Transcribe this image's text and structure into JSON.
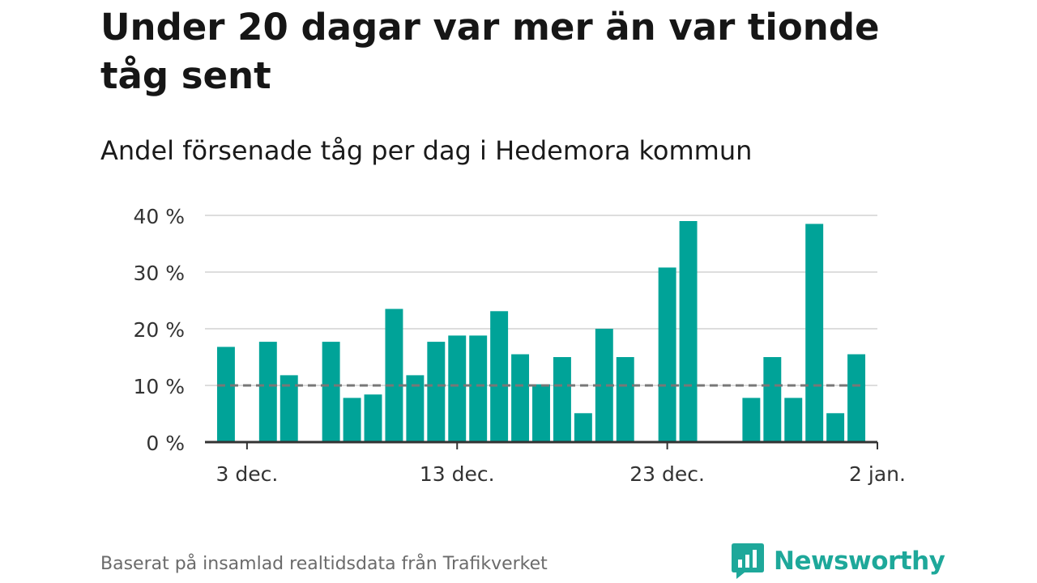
{
  "title": "Under 20 dagar var mer än var tionde tåg sent",
  "subtitle": "Andel försenade tåg per dag i Hedemora kommun",
  "source": "Baserat på insamlad realtidsdata från Trafikverket",
  "brand": {
    "name": "Newsworthy",
    "icon": "newsworthy-logo-icon",
    "color": "#1ea89a"
  },
  "colors": {
    "bar": "#00a398",
    "reference": "#777777",
    "grid": "#dddddd",
    "axis": "#333333"
  },
  "chart_data": {
    "type": "bar",
    "x": [
      "2019-12-02",
      "2019-12-03",
      "2019-12-04",
      "2019-12-05",
      "2019-12-06",
      "2019-12-07",
      "2019-12-08",
      "2019-12-09",
      "2019-12-10",
      "2019-12-11",
      "2019-12-12",
      "2019-12-13",
      "2019-12-14",
      "2019-12-15",
      "2019-12-16",
      "2019-12-17",
      "2019-12-18",
      "2019-12-19",
      "2019-12-20",
      "2019-12-21",
      "2019-12-22",
      "2019-12-23",
      "2019-12-24",
      "2019-12-25",
      "2019-12-26",
      "2019-12-27",
      "2019-12-28",
      "2019-12-29",
      "2019-12-30",
      "2019-12-31",
      "2020-01-01"
    ],
    "values": [
      16.8,
      null,
      17.7,
      11.8,
      null,
      17.7,
      7.8,
      8.4,
      23.5,
      11.8,
      17.7,
      18.8,
      18.8,
      23.1,
      15.5,
      10.2,
      15.0,
      5.1,
      20.0,
      15.0,
      null,
      30.8,
      39.0,
      null,
      null,
      7.8,
      15.0,
      7.8,
      38.5,
      5.1,
      15.5
    ],
    "reference_line": 10,
    "ylim": [
      0,
      40
    ],
    "yticks": [
      0,
      10,
      20,
      30,
      40
    ],
    "ytick_labels": [
      "0 %",
      "10 %",
      "20 %",
      "30 %",
      "40 %"
    ],
    "xticks": [
      "2019-12-03",
      "2019-12-13",
      "2019-12-23",
      "2020-01-02"
    ],
    "xtick_labels": [
      "3 dec.",
      "13 dec.",
      "23 dec.",
      "2 jan."
    ],
    "xlim": [
      "2019-12-01",
      "2020-01-02"
    ],
    "grid": true
  }
}
